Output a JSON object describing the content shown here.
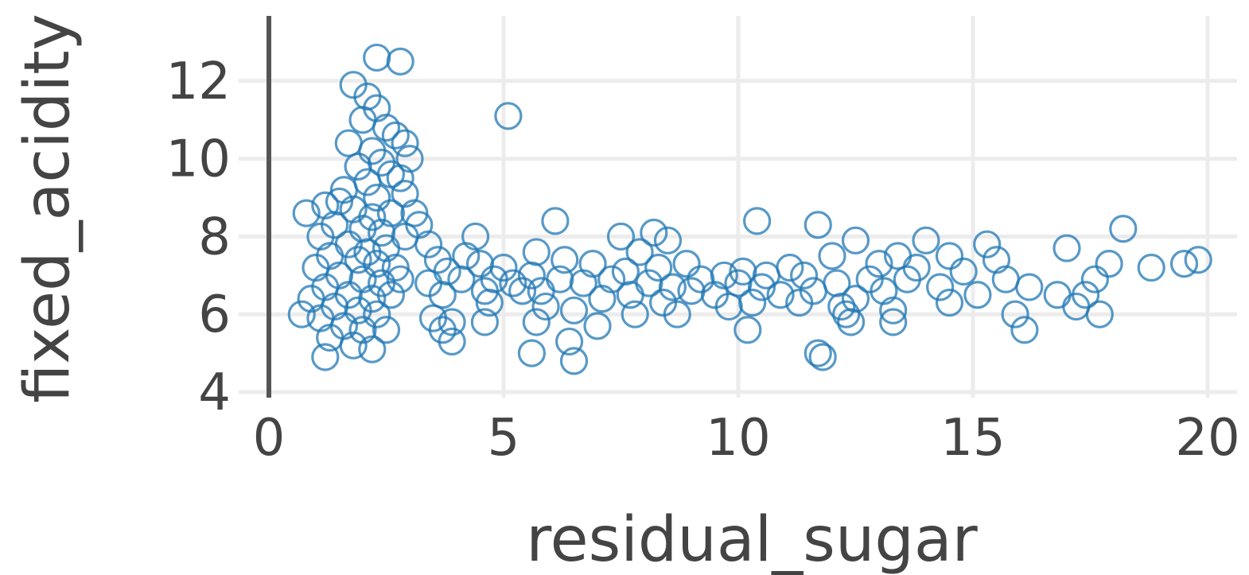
{
  "chart_data": {
    "type": "scatter",
    "xlabel": "residual_sugar",
    "ylabel": "fixed_acidity",
    "xlim": [
      0,
      20.5
    ],
    "ylim": [
      3.9,
      13.3
    ],
    "xticks": [
      0,
      5,
      10,
      15,
      20
    ],
    "yticks": [
      4,
      6,
      8,
      10,
      12
    ],
    "grid": true,
    "marker": "open-circle",
    "color": "#1f77b4",
    "series": [
      {
        "points": [
          [
            2.3,
            12.6
          ],
          [
            2.8,
            12.5
          ],
          [
            1.8,
            11.9
          ],
          [
            2.1,
            11.6
          ],
          [
            2.3,
            11.3
          ],
          [
            2.0,
            11.0
          ],
          [
            5.1,
            11.1
          ],
          [
            2.5,
            10.8
          ],
          [
            2.7,
            10.6
          ],
          [
            1.7,
            10.4
          ],
          [
            2.2,
            10.2
          ],
          [
            2.9,
            10.4
          ],
          [
            3.0,
            10.0
          ],
          [
            2.4,
            9.9
          ],
          [
            1.9,
            9.8
          ],
          [
            2.6,
            9.6
          ],
          [
            2.1,
            9.4
          ],
          [
            2.8,
            9.5
          ],
          [
            1.6,
            9.2
          ],
          [
            2.3,
            9.0
          ],
          [
            2.9,
            9.1
          ],
          [
            1.2,
            8.8
          ],
          [
            1.5,
            8.9
          ],
          [
            1.8,
            8.7
          ],
          [
            2.2,
            8.5
          ],
          [
            2.6,
            8.6
          ],
          [
            3.1,
            8.6
          ],
          [
            0.8,
            8.6
          ],
          [
            1.4,
            8.3
          ],
          [
            2.0,
            8.2
          ],
          [
            2.4,
            8.1
          ],
          [
            2.9,
            8.0
          ],
          [
            1.1,
            8.0
          ],
          [
            1.7,
            7.8
          ],
          [
            2.1,
            7.6
          ],
          [
            2.5,
            7.7
          ],
          [
            1.3,
            7.5
          ],
          [
            1.9,
            7.4
          ],
          [
            2.3,
            7.3
          ],
          [
            2.7,
            7.2
          ],
          [
            1.0,
            7.2
          ],
          [
            1.5,
            7.0
          ],
          [
            2.0,
            6.9
          ],
          [
            2.4,
            6.8
          ],
          [
            2.8,
            6.9
          ],
          [
            1.2,
            6.7
          ],
          [
            1.7,
            6.5
          ],
          [
            2.2,
            6.4
          ],
          [
            2.6,
            6.5
          ],
          [
            0.9,
            6.4
          ],
          [
            1.4,
            6.2
          ],
          [
            1.9,
            6.1
          ],
          [
            2.3,
            6.0
          ],
          [
            1.1,
            5.9
          ],
          [
            1.6,
            5.7
          ],
          [
            2.0,
            5.6
          ],
          [
            2.5,
            5.6
          ],
          [
            1.3,
            5.4
          ],
          [
            1.8,
            5.2
          ],
          [
            2.2,
            5.1
          ],
          [
            1.2,
            4.9
          ],
          [
            0.7,
            6.0
          ],
          [
            3.2,
            8.3
          ],
          [
            3.4,
            7.8
          ],
          [
            3.6,
            7.4
          ],
          [
            3.8,
            7.1
          ],
          [
            3.4,
            6.8
          ],
          [
            3.7,
            6.5
          ],
          [
            3.5,
            5.9
          ],
          [
            3.7,
            5.6
          ],
          [
            3.9,
            5.8
          ],
          [
            3.9,
            5.3
          ],
          [
            4.2,
            7.5
          ],
          [
            4.5,
            7.3
          ],
          [
            4.4,
            8.0
          ],
          [
            4.1,
            6.9
          ],
          [
            4.6,
            6.6
          ],
          [
            4.8,
            6.9
          ],
          [
            4.7,
            6.3
          ],
          [
            4.6,
            5.8
          ],
          [
            5.0,
            7.2
          ],
          [
            5.2,
            6.8
          ],
          [
            5.4,
            6.6
          ],
          [
            5.6,
            7.0
          ],
          [
            5.8,
            6.6
          ],
          [
            5.7,
            7.6
          ],
          [
            6.1,
            8.4
          ],
          [
            5.9,
            6.2
          ],
          [
            5.7,
            5.8
          ],
          [
            5.6,
            5.0
          ],
          [
            6.2,
            6.9
          ],
          [
            6.3,
            7.4
          ],
          [
            6.5,
            6.1
          ],
          [
            6.4,
            5.3
          ],
          [
            6.5,
            4.8
          ],
          [
            6.7,
            6.8
          ],
          [
            6.9,
            7.3
          ],
          [
            7.1,
            6.4
          ],
          [
            7.0,
            5.7
          ],
          [
            7.3,
            6.9
          ],
          [
            7.5,
            8.0
          ],
          [
            7.6,
            7.1
          ],
          [
            7.7,
            6.5
          ],
          [
            7.8,
            6.0
          ],
          [
            7.9,
            7.6
          ],
          [
            8.1,
            6.8
          ],
          [
            8.3,
            7.2
          ],
          [
            8.2,
            8.1
          ],
          [
            8.4,
            6.3
          ],
          [
            8.5,
            7.9
          ],
          [
            8.6,
            6.7
          ],
          [
            8.7,
            6.0
          ],
          [
            8.9,
            7.3
          ],
          [
            9.0,
            6.6
          ],
          [
            9.2,
            6.9
          ],
          [
            9.5,
            6.5
          ],
          [
            9.7,
            7.0
          ],
          [
            9.8,
            6.2
          ],
          [
            10.0,
            6.8
          ],
          [
            10.1,
            7.1
          ],
          [
            10.2,
            5.6
          ],
          [
            10.3,
            6.3
          ],
          [
            10.4,
            8.4
          ],
          [
            10.5,
            6.7
          ],
          [
            10.6,
            7.0
          ],
          [
            10.9,
            6.5
          ],
          [
            11.1,
            7.2
          ],
          [
            11.3,
            6.3
          ],
          [
            11.4,
            7.0
          ],
          [
            11.6,
            6.6
          ],
          [
            11.7,
            8.3
          ],
          [
            11.7,
            5.0
          ],
          [
            11.8,
            4.9
          ],
          [
            12.0,
            7.5
          ],
          [
            12.1,
            6.8
          ],
          [
            12.2,
            6.2
          ],
          [
            12.3,
            6.0
          ],
          [
            12.4,
            5.8
          ],
          [
            12.5,
            6.4
          ],
          [
            12.5,
            7.9
          ],
          [
            12.8,
            6.9
          ],
          [
            13.0,
            7.3
          ],
          [
            13.1,
            6.6
          ],
          [
            13.3,
            6.1
          ],
          [
            13.3,
            5.8
          ],
          [
            13.4,
            7.5
          ],
          [
            13.6,
            6.9
          ],
          [
            13.8,
            7.2
          ],
          [
            14.0,
            7.9
          ],
          [
            14.3,
            6.7
          ],
          [
            14.5,
            7.5
          ],
          [
            14.5,
            6.3
          ],
          [
            14.8,
            7.1
          ],
          [
            15.1,
            6.5
          ],
          [
            15.3,
            7.8
          ],
          [
            15.5,
            7.4
          ],
          [
            15.7,
            6.9
          ],
          [
            15.9,
            6.0
          ],
          [
            16.1,
            5.6
          ],
          [
            16.2,
            6.7
          ],
          [
            16.8,
            6.5
          ],
          [
            17.0,
            7.7
          ],
          [
            17.2,
            6.2
          ],
          [
            17.4,
            6.5
          ],
          [
            17.6,
            6.9
          ],
          [
            17.7,
            6.0
          ],
          [
            17.9,
            7.3
          ],
          [
            18.2,
            8.2
          ],
          [
            18.8,
            7.2
          ],
          [
            19.5,
            7.3
          ],
          [
            19.8,
            7.4
          ]
        ]
      }
    ]
  }
}
